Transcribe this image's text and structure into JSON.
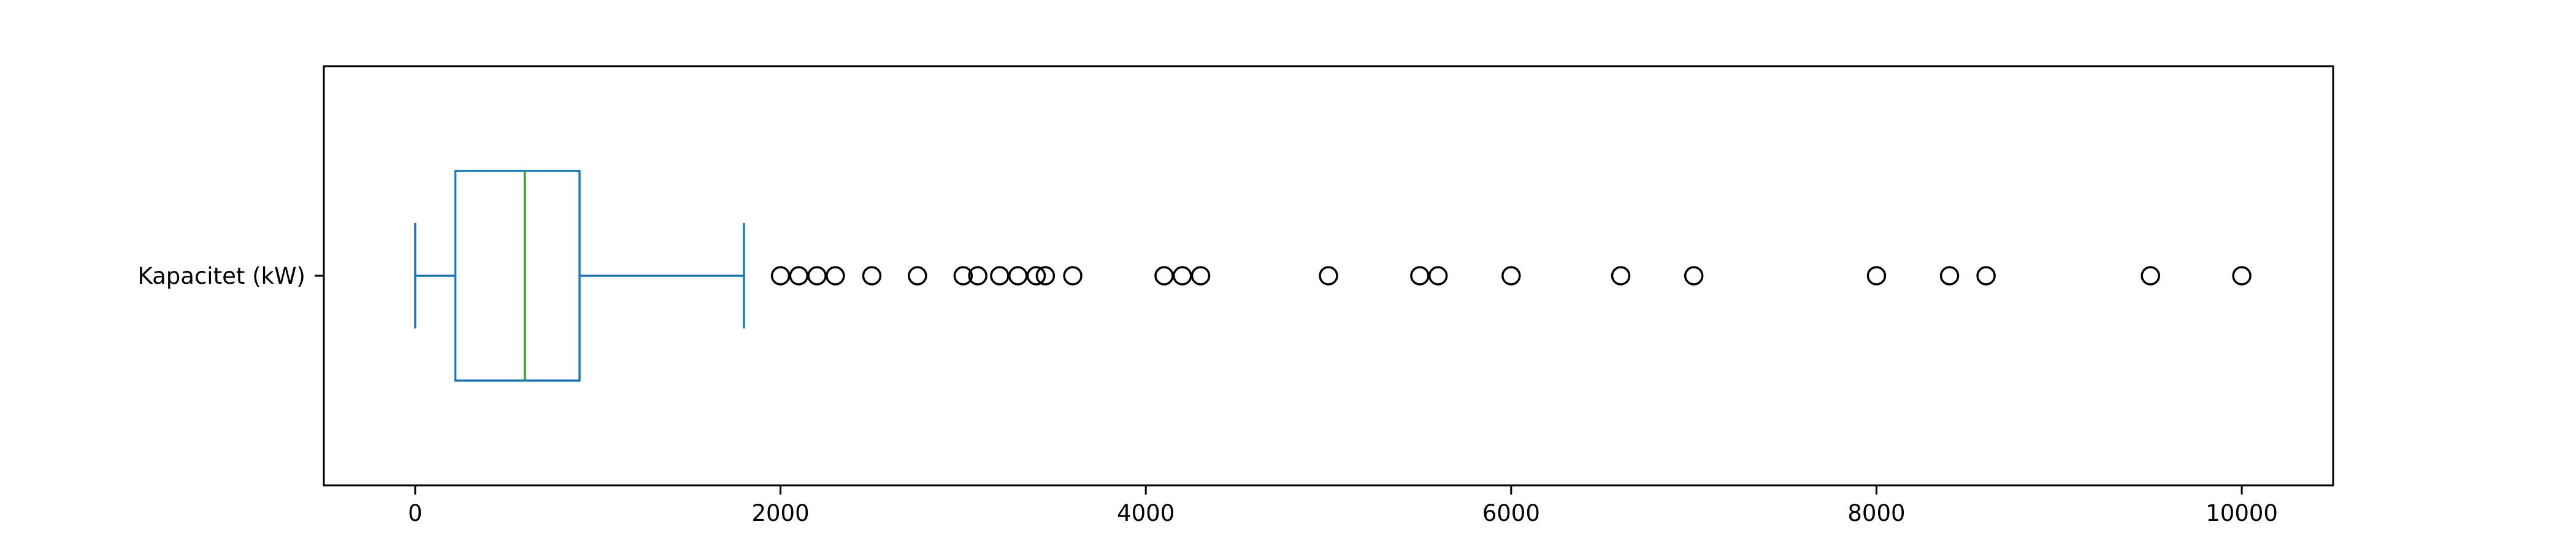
{
  "chart_data": {
    "type": "boxplot",
    "orientation": "horizontal",
    "title": "",
    "xlabel": "",
    "ylabel": "",
    "categories": [
      "Kapacitet (kW)"
    ],
    "xlim": [
      -500,
      10500
    ],
    "xticks": [
      0,
      2000,
      4000,
      6000,
      8000,
      10000
    ],
    "grid": false,
    "box": {
      "whisker_low": 0,
      "q1": 220,
      "median": 600,
      "q3": 900,
      "whisker_high": 1800
    },
    "outliers": [
      2000,
      2100,
      2200,
      2300,
      2500,
      2750,
      3000,
      3080,
      3200,
      3300,
      3400,
      3450,
      3600,
      4100,
      4200,
      4300,
      5000,
      5500,
      5600,
      6000,
      6600,
      7000,
      8000,
      8400,
      8600,
      9500,
      10000
    ],
    "colors": {
      "box": "#1f77b4",
      "median": "#2ca02c",
      "outlier_edge": "#000000",
      "axes": "#000000"
    }
  }
}
